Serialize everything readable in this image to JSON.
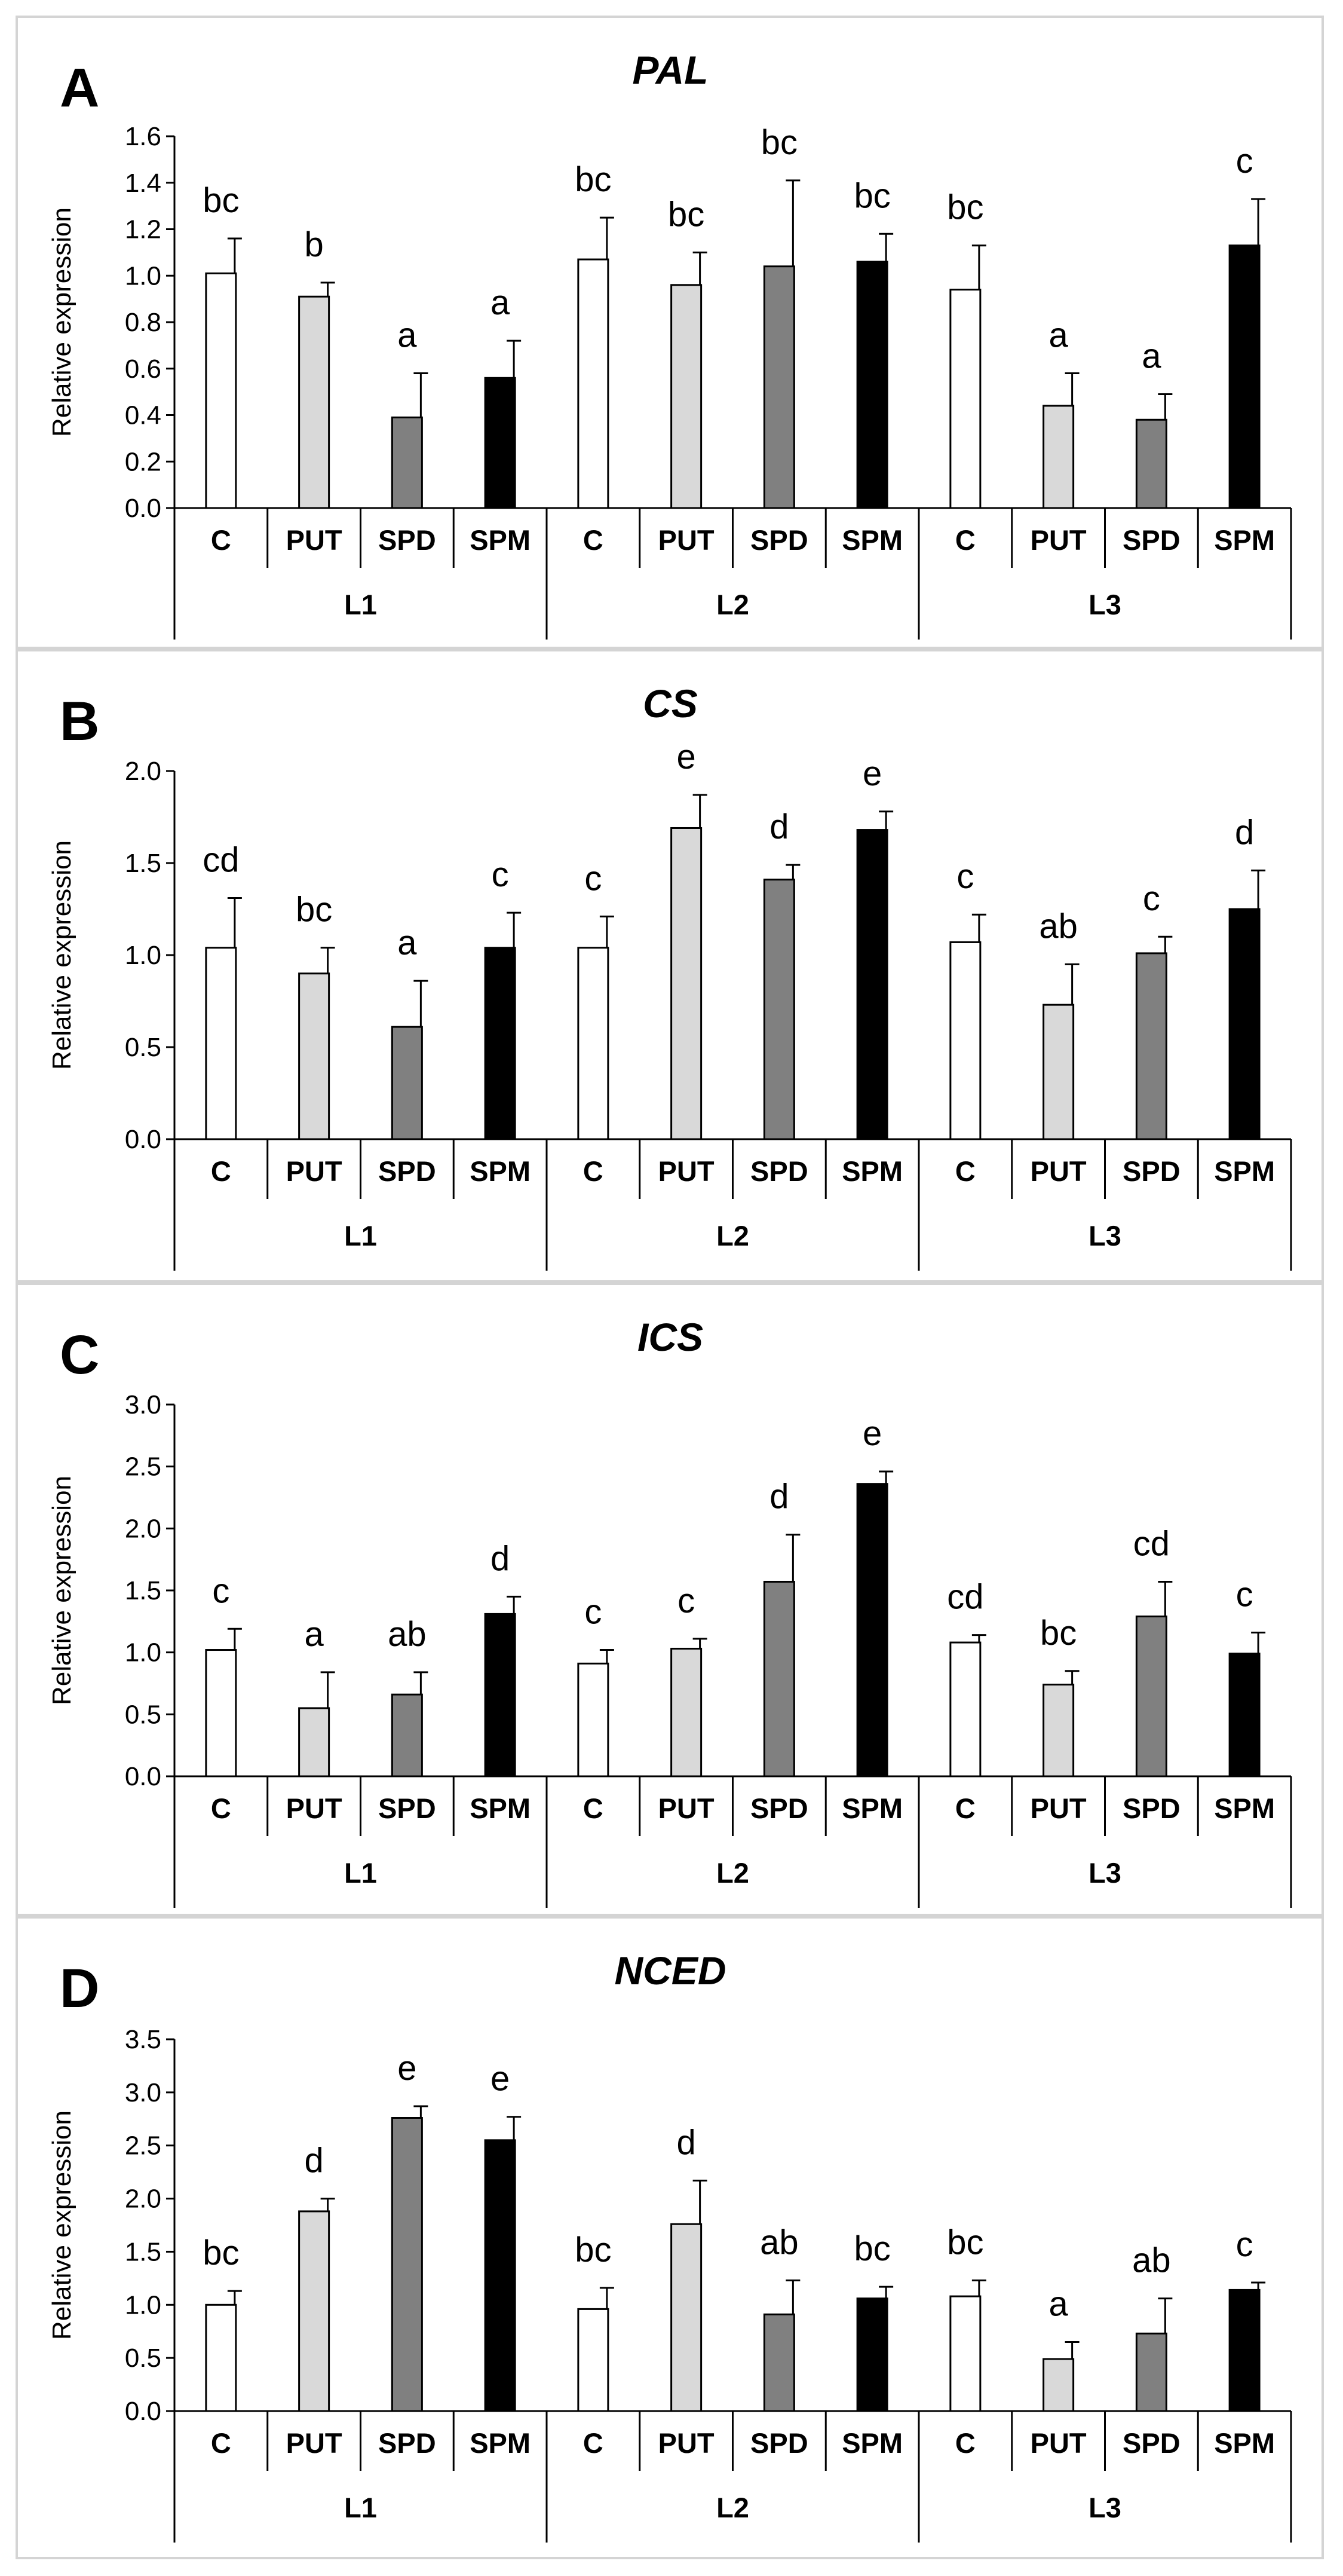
{
  "chart_data": [
    {
      "type": "bar",
      "letter": "A",
      "title": "PAL",
      "ylabel": "Relative expression",
      "ylim": [
        0,
        1.6
      ],
      "yticks": [
        "0.0",
        "0.2",
        "0.4",
        "0.6",
        "0.8",
        "1.0",
        "1.2",
        "1.4",
        "1.6"
      ],
      "ytick_values": [
        0,
        0.2,
        0.4,
        0.6,
        0.8,
        1.0,
        1.2,
        1.4,
        1.6
      ],
      "groups": [
        "L1",
        "L2",
        "L3"
      ],
      "categories": [
        "C",
        "PUT",
        "SPD",
        "SPM"
      ],
      "series_colors": {
        "C": "#ffffff",
        "PUT": "#d9d9d9",
        "SPD": "#808080",
        "SPM": "#000000"
      },
      "values": [
        [
          1.01,
          0.91,
          0.39,
          0.56
        ],
        [
          1.07,
          0.96,
          1.04,
          1.06
        ],
        [
          0.94,
          0.44,
          0.38,
          1.13
        ]
      ],
      "errors": [
        [
          0.15,
          0.06,
          0.19,
          0.16
        ],
        [
          0.18,
          0.14,
          0.37,
          0.12
        ],
        [
          0.19,
          0.14,
          0.11,
          0.2
        ]
      ],
      "sig_letters": [
        [
          "bc",
          "b",
          "a",
          "a"
        ],
        [
          "bc",
          "bc",
          "bc",
          "bc"
        ],
        [
          "bc",
          "a",
          "a",
          "c"
        ]
      ]
    },
    {
      "type": "bar",
      "letter": "B",
      "title": "CS",
      "ylabel": "Relative expression",
      "ylim": [
        0,
        2.0
      ],
      "yticks": [
        "0.0",
        "0.5",
        "1.0",
        "1.5",
        "2.0"
      ],
      "ytick_values": [
        0,
        0.5,
        1.0,
        1.5,
        2.0
      ],
      "groups": [
        "L1",
        "L2",
        "L3"
      ],
      "categories": [
        "C",
        "PUT",
        "SPD",
        "SPM"
      ],
      "series_colors": {
        "C": "#ffffff",
        "PUT": "#d9d9d9",
        "SPD": "#808080",
        "SPM": "#000000"
      },
      "values": [
        [
          1.04,
          0.9,
          0.61,
          1.04
        ],
        [
          1.04,
          1.69,
          1.41,
          1.68
        ],
        [
          1.07,
          0.73,
          1.01,
          1.25
        ]
      ],
      "errors": [
        [
          0.27,
          0.14,
          0.25,
          0.19
        ],
        [
          0.17,
          0.18,
          0.08,
          0.1
        ],
        [
          0.15,
          0.22,
          0.09,
          0.21
        ]
      ],
      "sig_letters": [
        [
          "cd",
          "bc",
          "a",
          "c"
        ],
        [
          "c",
          "e",
          "d",
          "e"
        ],
        [
          "c",
          "ab",
          "c",
          "d"
        ]
      ]
    },
    {
      "type": "bar",
      "letter": "C",
      "title": "ICS",
      "ylabel": "Relative expression",
      "ylim": [
        0,
        3.0
      ],
      "yticks": [
        "0.0",
        "0.5",
        "1.0",
        "1.5",
        "2.0",
        "2.5",
        "3.0"
      ],
      "ytick_values": [
        0,
        0.5,
        1.0,
        1.5,
        2.0,
        2.5,
        3.0
      ],
      "groups": [
        "L1",
        "L2",
        "L3"
      ],
      "categories": [
        "C",
        "PUT",
        "SPD",
        "SPM"
      ],
      "series_colors": {
        "C": "#ffffff",
        "PUT": "#d9d9d9",
        "SPD": "#808080",
        "SPM": "#000000"
      },
      "values": [
        [
          1.02,
          0.55,
          0.66,
          1.31
        ],
        [
          0.91,
          1.03,
          1.57,
          2.36
        ],
        [
          1.08,
          0.74,
          1.29,
          0.99
        ]
      ],
      "errors": [
        [
          0.17,
          0.29,
          0.18,
          0.14
        ],
        [
          0.11,
          0.08,
          0.38,
          0.1
        ],
        [
          0.06,
          0.11,
          0.28,
          0.17
        ]
      ],
      "sig_letters": [
        [
          "c",
          "a",
          "ab",
          "d"
        ],
        [
          "c",
          "c",
          "d",
          "e"
        ],
        [
          "cd",
          "bc",
          "cd",
          "c"
        ]
      ]
    },
    {
      "type": "bar",
      "letter": "D",
      "title": "NCED",
      "ylabel": "Relative expression",
      "ylim": [
        0,
        3.5
      ],
      "yticks": [
        "0.0",
        "0.5",
        "1.0",
        "1.5",
        "2.0",
        "2.5",
        "3.0",
        "3.5"
      ],
      "ytick_values": [
        0,
        0.5,
        1.0,
        1.5,
        2.0,
        2.5,
        3.0,
        3.5
      ],
      "groups": [
        "L1",
        "L2",
        "L3"
      ],
      "categories": [
        "C",
        "PUT",
        "SPD",
        "SPM"
      ],
      "series_colors": {
        "C": "#ffffff",
        "PUT": "#d9d9d9",
        "SPD": "#808080",
        "SPM": "#000000"
      },
      "values": [
        [
          1.0,
          1.88,
          2.76,
          2.55
        ],
        [
          0.96,
          1.76,
          0.91,
          1.06
        ],
        [
          1.08,
          0.49,
          0.73,
          1.14
        ]
      ],
      "errors": [
        [
          0.13,
          0.12,
          0.11,
          0.22
        ],
        [
          0.2,
          0.41,
          0.32,
          0.11
        ],
        [
          0.15,
          0.16,
          0.33,
          0.07
        ]
      ],
      "sig_letters": [
        [
          "bc",
          "d",
          "e",
          "e"
        ],
        [
          "bc",
          "d",
          "ab",
          "bc"
        ],
        [
          "bc",
          "a",
          "ab",
          "c"
        ]
      ]
    }
  ]
}
